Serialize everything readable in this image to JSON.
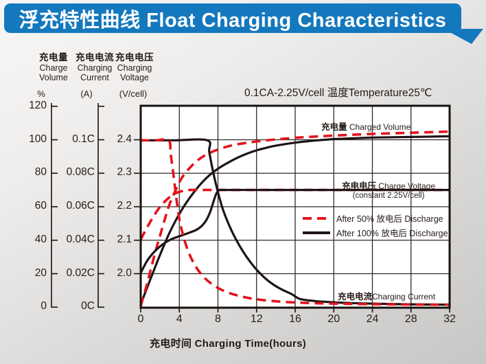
{
  "banner": {
    "title": "浮充特性曲线 Float Charging Characteristics"
  },
  "colors": {
    "banner": "#1478BE",
    "red": "#E3131B",
    "black": "#1E1417",
    "grid": "#2e2a28",
    "frame": "#17120f"
  },
  "annotation": "0.1CA-2.25V/cell  温度Temperature25℃",
  "axes": {
    "percent": {
      "zh": "充电量",
      "en1": "Charge",
      "en2": "Volume",
      "unit": "%",
      "ticks": [
        "120",
        "100",
        "80",
        "60",
        "40",
        "20",
        "0"
      ]
    },
    "current": {
      "zh": "充电电流",
      "en1": "Charging",
      "en2": "Current",
      "unit": "(A)",
      "ticks": [
        "0.1C",
        "0.08C",
        "0.06C",
        "0.04C",
        "0.02C",
        "0C"
      ]
    },
    "voltage": {
      "zh": "充电电压",
      "en1": "Charging",
      "en2": "Voltage",
      "unit": "(V/cell)",
      "ticks": [
        "2.4",
        "2.3",
        "2.2",
        "2.1",
        "2.0"
      ]
    },
    "x": {
      "label": "充电时间 Charging Time(hours)",
      "ticks": [
        "0",
        "4",
        "8",
        "12",
        "16",
        "20",
        "24",
        "28",
        "32"
      ]
    }
  },
  "plot_labels": {
    "volume_zh": "充电量",
    "volume_en": " Charged Volume",
    "voltage_zh": "充电电压",
    "voltage_en": " Charge Voltage",
    "voltage_sub": "(constant 2.25V/cell)",
    "current_zh": "充电电流",
    "current_en": "Charging Current"
  },
  "legend": {
    "after50": "After 50%  放电后 Discharge",
    "after100": "After 100%  放电后 Discharge"
  },
  "chart_data": {
    "type": "line",
    "title": "浮充特性曲线 Float Charging Characteristics",
    "condition": "0.1CA-2.25V/cell 温度Temperature25℃",
    "xlabel": "充电时间 Charging Time(hours)",
    "xlim": [
      0,
      32
    ],
    "x_ticks": [
      0,
      4,
      8,
      12,
      16,
      20,
      24,
      28,
      32
    ],
    "grid": true,
    "legend_position": "inside-middle-right",
    "axes_info": {
      "charge_volume": {
        "label": "充电量 Charge Volume",
        "unit": "%",
        "ticks": [
          120,
          100,
          80,
          60,
          40,
          20,
          0
        ],
        "lim": [
          0,
          120
        ]
      },
      "charging_current": {
        "label": "充电电流 Charging Current",
        "unit": "A",
        "ticks": [
          "0.1C",
          "0.08C",
          "0.06C",
          "0.04C",
          "0.02C",
          "0C"
        ],
        "lim": [
          0,
          0.12
        ]
      },
      "charging_voltage": {
        "label": "充电电压 Charging Voltage",
        "unit": "V/cell",
        "ticks": [
          2.4,
          2.3,
          2.2,
          2.1,
          2.0
        ],
        "lim": [
          1.9,
          2.5
        ]
      }
    },
    "series": [
      {
        "name": "charge-volume-after-100-discharge",
        "legend": "After 100% 放电后 Discharge",
        "axis": "percent",
        "color": "#1E1417",
        "dash": false,
        "points": [
          [
            0,
            2
          ],
          [
            1,
            17
          ],
          [
            2,
            31.5
          ],
          [
            3,
            45
          ],
          [
            4,
            56
          ],
          [
            5,
            65
          ],
          [
            6,
            72.5
          ],
          [
            7,
            78.5
          ],
          [
            8,
            83
          ],
          [
            9,
            86.5
          ],
          [
            10,
            89.5
          ],
          [
            11,
            92
          ],
          [
            12,
            94
          ],
          [
            13,
            95.5
          ],
          [
            14,
            96.8
          ],
          [
            16,
            98.6
          ],
          [
            18,
            99.8
          ],
          [
            20,
            100.7
          ],
          [
            22,
            101.2
          ],
          [
            24,
            101.6
          ],
          [
            28,
            102
          ],
          [
            32,
            102.4
          ]
        ]
      },
      {
        "name": "charge-volume-after-50-discharge",
        "legend": "After 50% 放电后 Discharge",
        "axis": "percent",
        "color": "#E3131B",
        "dash": true,
        "points": [
          [
            0,
            1
          ],
          [
            0.5,
            11
          ],
          [
            1,
            22
          ],
          [
            1.5,
            33
          ],
          [
            2,
            43
          ],
          [
            2.5,
            53
          ],
          [
            3,
            62
          ],
          [
            3.6,
            70
          ],
          [
            4.2,
            77
          ],
          [
            5,
            83
          ],
          [
            6,
            88.5
          ],
          [
            7,
            92
          ],
          [
            8,
            94.5
          ],
          [
            9,
            96.3
          ],
          [
            10,
            97.6
          ],
          [
            12,
            99.3
          ],
          [
            14,
            100.5
          ],
          [
            16,
            101.5
          ],
          [
            18,
            102.2
          ],
          [
            20,
            102.8
          ],
          [
            24,
            103.8
          ],
          [
            28,
            104.5
          ],
          [
            32,
            105.2
          ]
        ]
      },
      {
        "name": "charge-voltage-after-50-discharge",
        "legend": "After 50% 放电后 Discharge",
        "axis": "voltage",
        "color": "#E3131B",
        "dash": true,
        "points": [
          [
            0,
            2.102
          ],
          [
            0.6,
            2.135
          ],
          [
            1.2,
            2.165
          ],
          [
            1.8,
            2.192
          ],
          [
            2.4,
            2.213
          ],
          [
            3,
            2.229
          ],
          [
            3.6,
            2.24
          ],
          [
            4.3,
            2.247
          ],
          [
            5,
            2.25
          ],
          [
            8,
            2.25
          ],
          [
            12,
            2.25
          ],
          [
            16,
            2.25
          ],
          [
            20,
            2.25
          ],
          [
            26,
            2.25
          ],
          [
            32,
            2.25
          ]
        ]
      },
      {
        "name": "charge-voltage-after-100-discharge",
        "legend": "After 100% 放电后 Discharge",
        "axis": "voltage",
        "color": "#1E1417",
        "dash": false,
        "points": [
          [
            0,
            2.002
          ],
          [
            0.7,
            2.04
          ],
          [
            1.5,
            2.068
          ],
          [
            2.3,
            2.088
          ],
          [
            3.1,
            2.102
          ],
          [
            4,
            2.112
          ],
          [
            4.9,
            2.121
          ],
          [
            5.7,
            2.13
          ],
          [
            6.3,
            2.142
          ],
          [
            6.8,
            2.16
          ],
          [
            7.2,
            2.185
          ],
          [
            7.5,
            2.212
          ],
          [
            7.8,
            2.237
          ],
          [
            8.1,
            2.249
          ],
          [
            8.5,
            2.25
          ],
          [
            12,
            2.25
          ],
          [
            16,
            2.25
          ],
          [
            20,
            2.25
          ],
          [
            26,
            2.25
          ],
          [
            32,
            2.25
          ]
        ]
      },
      {
        "name": "charging-current-after-100-discharge",
        "legend": "After 100% 放电后 Discharge",
        "axis": "current",
        "color": "#1E1417",
        "dash": false,
        "points": [
          [
            0,
            0.1
          ],
          [
            3.5,
            0.1
          ],
          [
            6.9,
            0.1
          ],
          [
            7.1,
            0.093
          ],
          [
            7.5,
            0.081
          ],
          [
            8,
            0.069
          ],
          [
            8.5,
            0.059
          ],
          [
            9.1,
            0.05
          ],
          [
            9.8,
            0.0415
          ],
          [
            10.6,
            0.0335
          ],
          [
            11.5,
            0.0262
          ],
          [
            12.4,
            0.0203
          ],
          [
            13.4,
            0.0152
          ],
          [
            14.5,
            0.0112
          ],
          [
            15.6,
            0.0082
          ],
          [
            16.5,
            0.0052
          ],
          [
            18,
            0.004
          ],
          [
            19.5,
            0.0034
          ],
          [
            21,
            0.0029
          ],
          [
            24,
            0.0024
          ],
          [
            28,
            0.002
          ],
          [
            32,
            0.0018
          ]
        ]
      },
      {
        "name": "charging-current-after-50-discharge",
        "legend": "After 50% 放电后 Discharge",
        "axis": "current",
        "color": "#E3131B",
        "dash": true,
        "points": [
          [
            0,
            0.1
          ],
          [
            1.5,
            0.1
          ],
          [
            2.9,
            0.1
          ],
          [
            3.1,
            0.092
          ],
          [
            3.4,
            0.079
          ],
          [
            3.7,
            0.065
          ],
          [
            4,
            0.053
          ],
          [
            4.4,
            0.043
          ],
          [
            4.9,
            0.034
          ],
          [
            5.5,
            0.0265
          ],
          [
            6.2,
            0.0205
          ],
          [
            7,
            0.0158
          ],
          [
            8,
            0.0118
          ],
          [
            9,
            0.0091
          ],
          [
            10,
            0.0073
          ],
          [
            11,
            0.006
          ],
          [
            12,
            0.005
          ],
          [
            14,
            0.0038
          ],
          [
            16,
            0.0031
          ],
          [
            18,
            0.0027
          ],
          [
            20,
            0.0024
          ],
          [
            24,
            0.0021
          ],
          [
            28,
            0.0019
          ],
          [
            32,
            0.0018
          ]
        ]
      }
    ]
  }
}
